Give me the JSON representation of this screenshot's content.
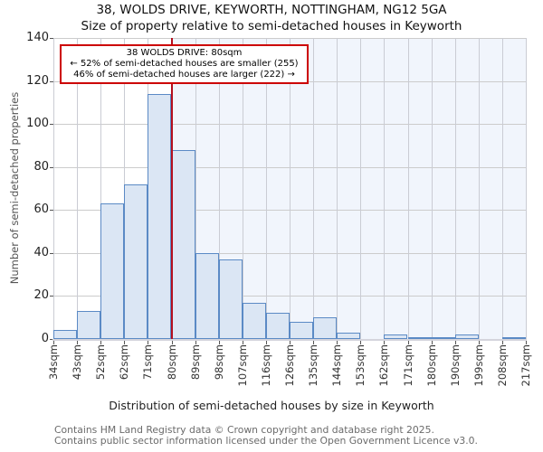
{
  "footer": {
    "line1": "Contains HM Land Registry data © Crown copyright and database right 2025.",
    "line2": "Contains public sector information licensed under the Open Government Licence v3.0."
  },
  "chart_data": {
    "type": "bar",
    "title": "38, WOLDS DRIVE, KEYWORTH, NOTTINGHAM, NG12 5GA",
    "subtitle": "Size of property relative to semi-detached houses in Keyworth",
    "xlabel": "Distribution of semi-detached houses by size in Keyworth",
    "ylabel": "Number of semi-detached properties",
    "x_tick_labels": [
      "34sqm",
      "43sqm",
      "52sqm",
      "62sqm",
      "71sqm",
      "80sqm",
      "89sqm",
      "98sqm",
      "107sqm",
      "116sqm",
      "126sqm",
      "135sqm",
      "144sqm",
      "153sqm",
      "162sqm",
      "171sqm",
      "180sqm",
      "190sqm",
      "199sqm",
      "208sqm",
      "217sqm"
    ],
    "bin_edges_sqm": [
      34,
      43,
      52,
      62,
      71,
      80,
      89,
      98,
      107,
      116,
      126,
      135,
      144,
      153,
      162,
      171,
      180,
      190,
      199,
      208,
      217
    ],
    "values": [
      4,
      13,
      63,
      72,
      114,
      88,
      40,
      37,
      17,
      12,
      8,
      10,
      3,
      0,
      2,
      1,
      1,
      2,
      0,
      1
    ],
    "y_ticks": [
      0,
      20,
      40,
      60,
      80,
      100,
      120,
      140
    ],
    "ylim": [
      0,
      140
    ],
    "grid": true,
    "legend": "none",
    "marker": {
      "property": "38 WOLDS DRIVE",
      "value_sqm": 80,
      "bin_index": 5
    },
    "annotation": {
      "line1": "38 WOLDS DRIVE: 80sqm",
      "line2": "← 52% of semi-detached houses are smaller (255)",
      "line3": "46% of semi-detached houses are larger (222) →"
    },
    "colors": {
      "bar_fill": "#dbe6f4",
      "bar_border": "#5b8ac5",
      "larger_region_bg": "#f1f5fc",
      "marker_line": "#b40f1e",
      "annotation_border": "#cc0000",
      "grid": "#cccccc",
      "footer_text": "#6b6b6b"
    }
  }
}
